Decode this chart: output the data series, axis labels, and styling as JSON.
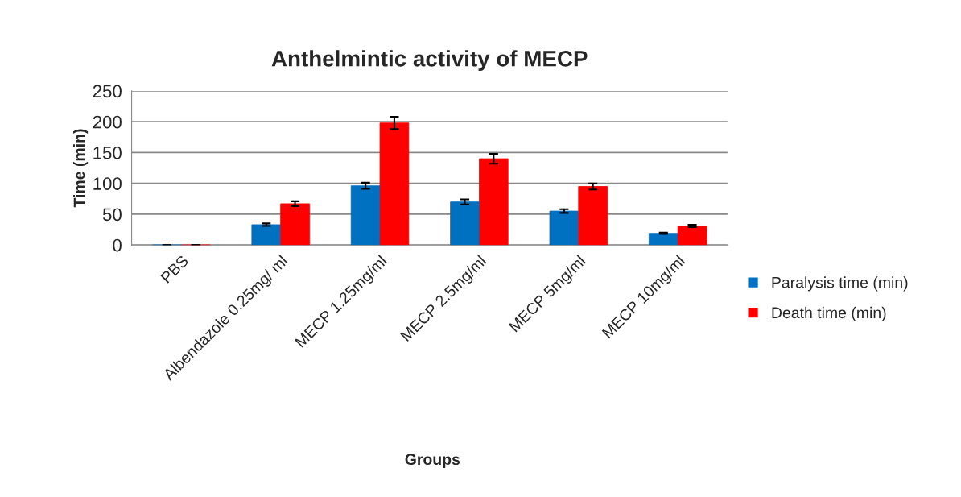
{
  "chart_data": {
    "type": "bar",
    "title": "Anthelmintic activity of MECP",
    "xlabel": "Groups",
    "ylabel": "Time (min)",
    "categories": [
      "PBS",
      "Albendazole 0.25mg/ ml",
      "MECP 1.25mg/ml",
      "MECP 2.5mg/ml",
      "MECP 5mg/ml",
      "MECP 10mg/ml"
    ],
    "series": [
      {
        "name": "Paralysis time (min)",
        "color": "#0070c0",
        "values": [
          0,
          33,
          96,
          70,
          55,
          19
        ],
        "errors": [
          0,
          2,
          5,
          4,
          3,
          1
        ]
      },
      {
        "name": "Death time (min)",
        "color": "#ff0000",
        "values": [
          0,
          67,
          198,
          140,
          95,
          31
        ],
        "errors": [
          0,
          4,
          10,
          8,
          5,
          2
        ]
      }
    ],
    "ylim": [
      0,
      250
    ],
    "yticks": [
      0,
      50,
      100,
      150,
      200,
      250
    ],
    "grid": "y",
    "legend": "right"
  }
}
